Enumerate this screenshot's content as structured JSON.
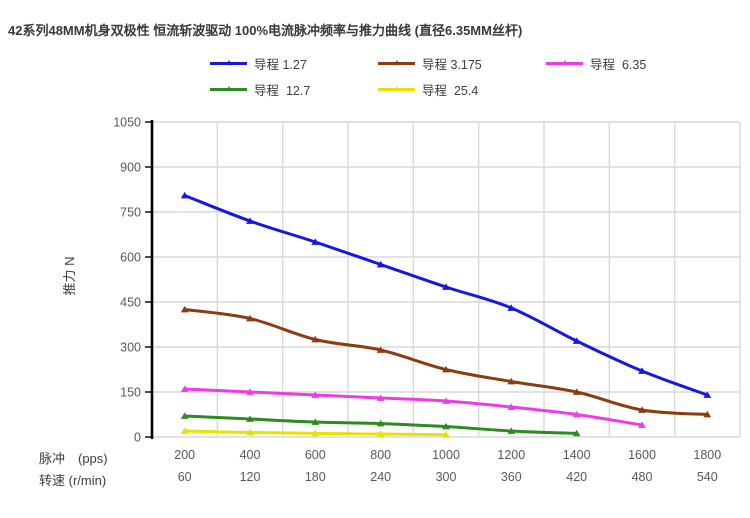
{
  "chart_data": {
    "type": "line",
    "title": "42系列48MM机身双极性 恒流斩波驱动 100%电流脉冲频率与推力曲线 (直径6.35MM丝杆)",
    "ylabel": "推力  N",
    "ylim": [
      0,
      1050
    ],
    "yticks": [
      0,
      150,
      300,
      450,
      600,
      750,
      900,
      1050
    ],
    "grid": true,
    "legend_position": "top",
    "grid_color": "#D9D9D9",
    "axis_color": "#000000",
    "tick_label_color": "#595959",
    "x_axis_rows": [
      {
        "label": "脉冲　(pps)",
        "values": [
          "200",
          "400",
          "600",
          "800",
          "1000",
          "1200",
          "1400",
          "1600",
          "1800"
        ]
      },
      {
        "label": "转速 (r/min)",
        "values": [
          "60",
          "120",
          "180",
          "240",
          "300",
          "360",
          "420",
          "480",
          "540"
        ]
      }
    ],
    "series": [
      {
        "name": "导程 1.27",
        "color": "#1717DE",
        "values": [
          805,
          720,
          650,
          575,
          500,
          430,
          320,
          220,
          140
        ]
      },
      {
        "name": "导程 3.175",
        "color": "#8B3C10",
        "values": [
          425,
          395,
          325,
          290,
          225,
          185,
          150,
          90,
          75
        ]
      },
      {
        "name": "导程  6.35",
        "color": "#EE3CE2",
        "values": [
          160,
          150,
          140,
          130,
          120,
          100,
          75,
          40,
          null
        ]
      },
      {
        "name": "导程  12.7",
        "color": "#2E8B1F",
        "values": [
          70,
          60,
          50,
          45,
          35,
          20,
          12,
          null,
          null
        ]
      },
      {
        "name": "导程  25.4",
        "color": "#E6E300",
        "values": [
          20,
          15,
          12,
          10,
          8,
          null,
          null,
          null,
          null
        ]
      }
    ]
  }
}
